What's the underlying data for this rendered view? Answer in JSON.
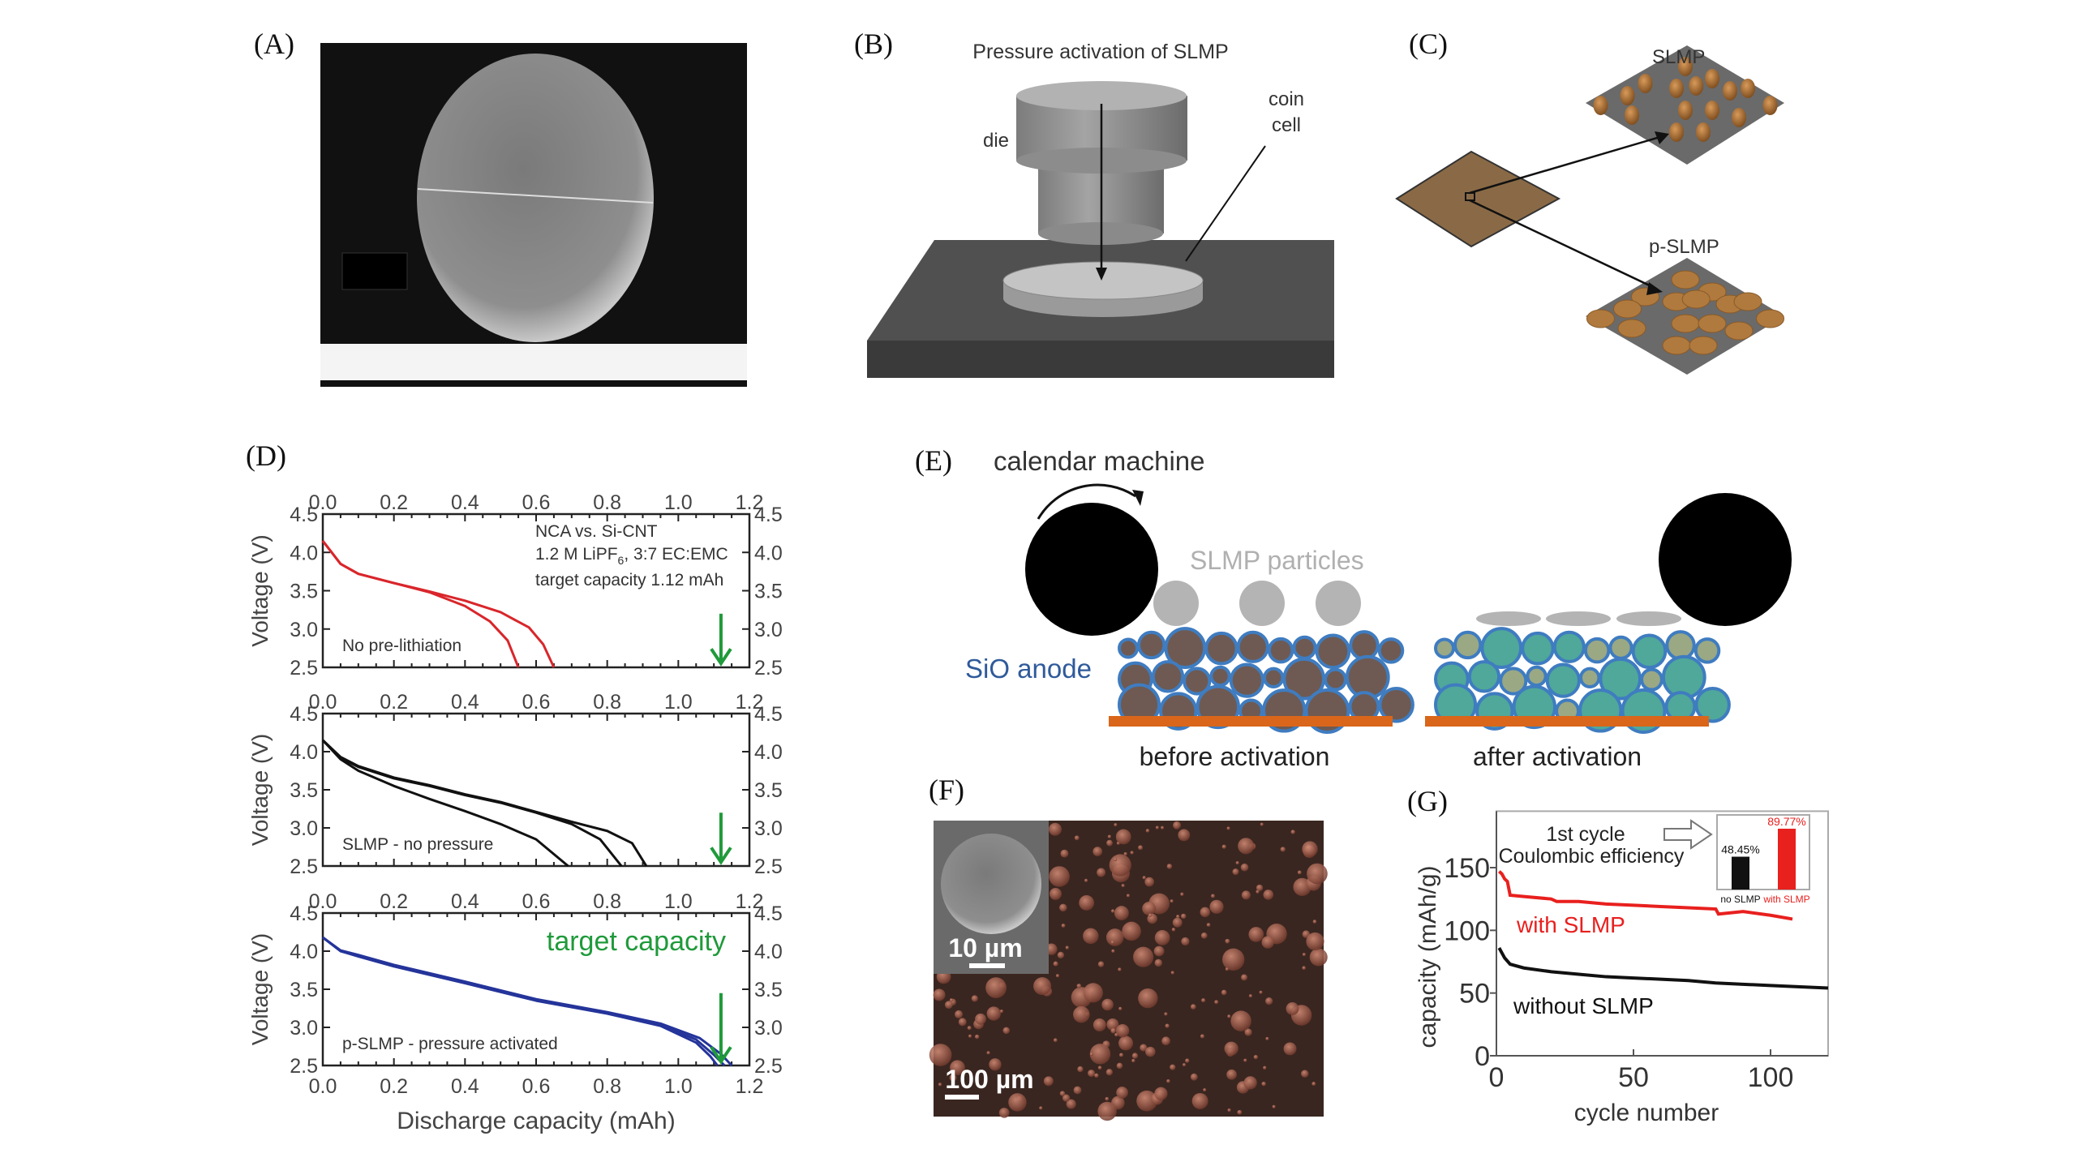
{
  "panels": {
    "a": {
      "label": "(A)"
    },
    "b": {
      "label": "(B)",
      "title": "Pressure activation of SLMP",
      "die": "die",
      "coin_cell_line1": "coin",
      "coin_cell_line2": "cell"
    },
    "c": {
      "label": "(C)",
      "slmp": "SLMP",
      "p_slmp": "p-SLMP"
    },
    "d": {
      "label": "(D)"
    },
    "e": {
      "label": "(E)",
      "calendar_machine": "calendar machine",
      "slmp_particles": "SLMP particles",
      "sio_anode": "SiO anode",
      "before": "before activation",
      "after": "after activation",
      "colors": {
        "roller": "#000000",
        "slmp": "#b4b4b4",
        "particle_before": "#6e5a52",
        "particle_after": "#4fa89a",
        "shell": "#3f7cc0",
        "current_collector": "#d9661a"
      }
    },
    "f": {
      "label": "(F)",
      "inset_scale": "10 µm",
      "scale": "100 µm"
    },
    "g": {
      "label": "(G)"
    }
  },
  "chart_data": [
    {
      "panel": "D",
      "type": "line",
      "xlabel": "Discharge capacity (mAh)",
      "ylabel": "Voltage (V)",
      "xlim": [
        0,
        1.2
      ],
      "ylim": [
        2.5,
        4.5
      ],
      "xticks": [
        "0.0",
        "0.2",
        "0.4",
        "0.6",
        "0.8",
        "1.0",
        "1.2"
      ],
      "yticks": [
        "2.5",
        "3.0",
        "3.5",
        "4.0",
        "4.5"
      ],
      "notes": {
        "line1": "NCA vs. Si-CNT",
        "line2a": "1.2 M LiPF",
        "line2sub": "6",
        "line2b": ", 3:7 EC:EMC",
        "line3": "target capacity 1.12 mAh"
      },
      "target_label": "target capacity",
      "target_capacity": 1.12,
      "target_color": "#1f9a3a",
      "subplots": [
        {
          "annotation": "No pre-lithiation",
          "color": "#d9262b",
          "curves": [
            [
              [
                0,
                4.15
              ],
              [
                0.05,
                3.85
              ],
              [
                0.1,
                3.72
              ],
              [
                0.2,
                3.6
              ],
              [
                0.3,
                3.48
              ],
              [
                0.4,
                3.3
              ],
              [
                0.47,
                3.1
              ],
              [
                0.52,
                2.85
              ],
              [
                0.55,
                2.5
              ]
            ],
            [
              [
                0,
                4.15
              ],
              [
                0.05,
                3.85
              ],
              [
                0.1,
                3.72
              ],
              [
                0.2,
                3.6
              ],
              [
                0.3,
                3.49
              ],
              [
                0.4,
                3.37
              ],
              [
                0.5,
                3.22
              ],
              [
                0.58,
                3.02
              ],
              [
                0.62,
                2.8
              ],
              [
                0.65,
                2.5
              ]
            ]
          ]
        },
        {
          "annotation": "SLMP - no pressure",
          "color": "#111111",
          "curves": [
            [
              [
                0,
                4.15
              ],
              [
                0.05,
                3.9
              ],
              [
                0.1,
                3.75
              ],
              [
                0.2,
                3.55
              ],
              [
                0.3,
                3.38
              ],
              [
                0.4,
                3.22
              ],
              [
                0.5,
                3.05
              ],
              [
                0.6,
                2.85
              ],
              [
                0.69,
                2.5
              ]
            ],
            [
              [
                0,
                4.15
              ],
              [
                0.05,
                3.92
              ],
              [
                0.1,
                3.8
              ],
              [
                0.2,
                3.65
              ],
              [
                0.3,
                3.55
              ],
              [
                0.4,
                3.43
              ],
              [
                0.5,
                3.33
              ],
              [
                0.6,
                3.2
              ],
              [
                0.7,
                3.05
              ],
              [
                0.78,
                2.85
              ],
              [
                0.84,
                2.5
              ]
            ],
            [
              [
                0,
                4.15
              ],
              [
                0.05,
                3.93
              ],
              [
                0.1,
                3.81
              ],
              [
                0.2,
                3.66
              ],
              [
                0.3,
                3.56
              ],
              [
                0.4,
                3.44
              ],
              [
                0.5,
                3.34
              ],
              [
                0.6,
                3.21
              ],
              [
                0.7,
                3.08
              ],
              [
                0.8,
                2.96
              ],
              [
                0.87,
                2.8
              ],
              [
                0.91,
                2.5
              ]
            ]
          ]
        },
        {
          "annotation": "p-SLMP - pressure activated",
          "color": "#24349a",
          "curves": [
            [
              [
                0,
                4.18
              ],
              [
                0.05,
                4.0
              ],
              [
                0.1,
                3.93
              ],
              [
                0.2,
                3.8
              ],
              [
                0.4,
                3.58
              ],
              [
                0.6,
                3.35
              ],
              [
                0.8,
                3.18
              ],
              [
                0.95,
                3.02
              ],
              [
                1.05,
                2.8
              ],
              [
                1.09,
                2.62
              ],
              [
                1.11,
                2.5
              ]
            ],
            [
              [
                0,
                4.18
              ],
              [
                0.05,
                4.0
              ],
              [
                0.1,
                3.94
              ],
              [
                0.2,
                3.81
              ],
              [
                0.4,
                3.59
              ],
              [
                0.6,
                3.36
              ],
              [
                0.8,
                3.19
              ],
              [
                0.95,
                3.03
              ],
              [
                1.05,
                2.84
              ],
              [
                1.1,
                2.64
              ],
              [
                1.13,
                2.5
              ]
            ],
            [
              [
                0,
                4.18
              ],
              [
                0.05,
                4.01
              ],
              [
                0.1,
                3.95
              ],
              [
                0.2,
                3.82
              ],
              [
                0.4,
                3.6
              ],
              [
                0.6,
                3.37
              ],
              [
                0.8,
                3.2
              ],
              [
                0.95,
                3.05
              ],
              [
                1.06,
                2.86
              ],
              [
                1.12,
                2.65
              ],
              [
                1.15,
                2.5
              ]
            ]
          ]
        }
      ]
    },
    {
      "panel": "G",
      "type": "line",
      "xlabel": "cycle number",
      "ylabel": "capacity (mAh/g)",
      "xlim": [
        0,
        121
      ],
      "ylim": [
        0,
        195
      ],
      "xticks": [
        "0",
        "50",
        "100"
      ],
      "xtick_values": [
        0,
        50,
        100
      ],
      "yticks": [
        "0",
        "50",
        "100",
        "150"
      ],
      "ytick_values": [
        0,
        50,
        100,
        150
      ],
      "series": [
        {
          "name": "with SLMP",
          "color": "#e8201e",
          "x": [
            1,
            2,
            3,
            4,
            5,
            10,
            20,
            22,
            30,
            40,
            50,
            60,
            70,
            80,
            81,
            90,
            100,
            108
          ],
          "y": [
            147,
            145,
            141,
            139,
            128,
            127,
            125,
            123,
            123,
            121,
            120,
            119,
            118,
            117,
            113,
            115,
            112,
            109
          ]
        },
        {
          "name": "without SLMP",
          "color": "#111111",
          "x": [
            1,
            2,
            3,
            5,
            10,
            20,
            30,
            40,
            50,
            60,
            70,
            80,
            90,
            100,
            110,
            121
          ],
          "y": [
            86,
            82,
            78,
            73,
            70,
            67,
            65,
            63,
            62,
            61,
            60,
            58,
            57,
            56,
            55,
            54
          ]
        }
      ],
      "annotation": {
        "line1": "1st cycle",
        "line2": "Coulombic efficiency"
      },
      "inset": {
        "type": "bar",
        "categories": [
          "no SLMP",
          "with SLMP"
        ],
        "values": [
          48.45,
          89.77
        ],
        "labels": [
          "48.45%",
          "89.77%"
        ],
        "colors": [
          "#111111",
          "#e8201e"
        ]
      }
    }
  ]
}
